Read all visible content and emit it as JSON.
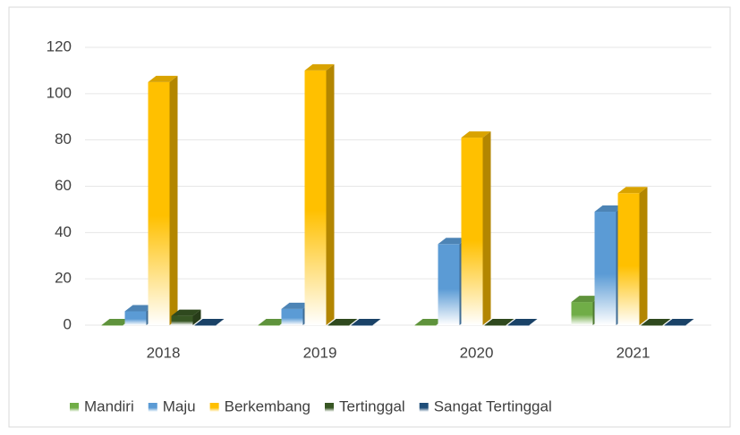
{
  "chart_data": {
    "type": "bar3d",
    "categories": [
      "2018",
      "2019",
      "2020",
      "2021"
    ],
    "series": [
      {
        "name": "Mandiri",
        "color": "#70ad47",
        "values": [
          0,
          0,
          0,
          10
        ]
      },
      {
        "name": "Maju",
        "color": "#5b9bd5",
        "values": [
          6,
          7,
          35,
          49
        ]
      },
      {
        "name": "Berkembang",
        "color": "#ffc000",
        "values": [
          105,
          110,
          81,
          57
        ]
      },
      {
        "name": "Tertinggal",
        "color": "#375623",
        "values": [
          4,
          0,
          0,
          0
        ]
      },
      {
        "name": "Sangat Tertinggal",
        "color": "#1f4e79",
        "values": [
          0,
          0,
          0,
          0
        ]
      }
    ],
    "ylim": [
      0,
      120
    ],
    "yticks": [
      0,
      20,
      40,
      60,
      80,
      100,
      120
    ],
    "grid": true,
    "legend": "bottom"
  }
}
